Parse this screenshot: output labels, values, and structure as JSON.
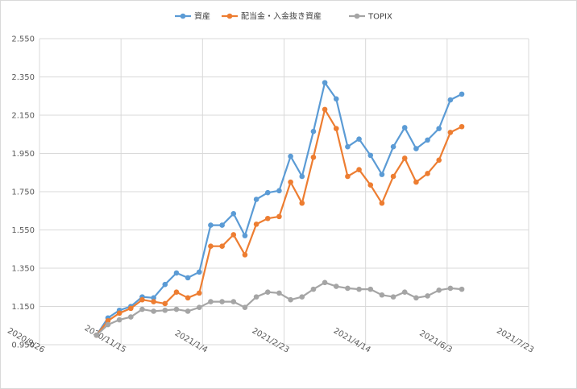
{
  "chart_data": {
    "type": "line",
    "title": "",
    "xlabel": "",
    "ylabel": "",
    "ylim": [
      0.95,
      2.55
    ],
    "xlim": [
      "2020-09-26",
      "2021-07-23"
    ],
    "yticks": [
      "2.550",
      "2.350",
      "2.150",
      "1.950",
      "1.750",
      "1.550",
      "1.350",
      "1.150",
      "0.950"
    ],
    "ytick_values": [
      2.55,
      2.35,
      2.15,
      1.95,
      1.75,
      1.55,
      1.35,
      1.15,
      0.95
    ],
    "xticks": [
      "2020/9/26",
      "2020/11/15",
      "2021/1/4",
      "2021/2/23",
      "2021/4/14",
      "2021/6/3",
      "2021/7/23"
    ],
    "xtick_dates": [
      "2020-09-26",
      "2020-11-15",
      "2021-01-04",
      "2021-02-23",
      "2021-04-14",
      "2021-06-03",
      "2021-07-23"
    ],
    "grid": "vertical and horizontal",
    "legend_position": "top",
    "x": [
      "2020-10-31",
      "2020-11-07",
      "2020-11-14",
      "2020-11-21",
      "2020-11-28",
      "2020-12-05",
      "2020-12-12",
      "2020-12-19",
      "2020-12-26",
      "2021-01-02",
      "2021-01-09",
      "2021-01-16",
      "2021-01-23",
      "2021-01-30",
      "2021-02-06",
      "2021-02-13",
      "2021-02-20",
      "2021-02-27",
      "2021-03-06",
      "2021-03-13",
      "2021-03-20",
      "2021-03-27",
      "2021-04-03",
      "2021-04-10",
      "2021-04-17",
      "2021-04-24",
      "2021-05-01",
      "2021-05-08",
      "2021-05-15",
      "2021-05-22",
      "2021-05-29",
      "2021-06-05",
      "2021-06-12"
    ],
    "series": [
      {
        "name": "資産",
        "color": "#5b9bd5",
        "values": [
          1.0,
          1.09,
          1.13,
          1.15,
          1.2,
          1.195,
          1.265,
          1.325,
          1.3,
          1.33,
          1.575,
          1.575,
          1.635,
          1.52,
          1.71,
          1.745,
          1.755,
          1.935,
          1.83,
          2.065,
          2.32,
          2.235,
          1.985,
          2.025,
          1.94,
          1.84,
          1.985,
          2.085,
          1.975,
          2.02,
          2.08,
          2.23,
          2.26
        ]
      },
      {
        "name": "配当金・入金抜き資産",
        "color": "#ed7d31",
        "values": [
          1.0,
          1.075,
          1.115,
          1.14,
          1.185,
          1.175,
          1.165,
          1.225,
          1.195,
          1.22,
          1.465,
          1.465,
          1.525,
          1.42,
          1.58,
          1.61,
          1.62,
          1.8,
          1.69,
          1.93,
          2.18,
          2.08,
          1.83,
          1.865,
          1.785,
          1.69,
          1.83,
          1.925,
          1.8,
          1.845,
          1.915,
          2.06,
          2.09
        ]
      },
      {
        "name": "TOPIX",
        "color": "#a5a5a5",
        "values": [
          1.0,
          1.055,
          1.08,
          1.095,
          1.135,
          1.125,
          1.13,
          1.135,
          1.125,
          1.145,
          1.175,
          1.175,
          1.175,
          1.145,
          1.2,
          1.225,
          1.22,
          1.185,
          1.2,
          1.24,
          1.275,
          1.255,
          1.245,
          1.24,
          1.24,
          1.21,
          1.2,
          1.225,
          1.195,
          1.205,
          1.235,
          1.245,
          1.24
        ]
      }
    ]
  }
}
